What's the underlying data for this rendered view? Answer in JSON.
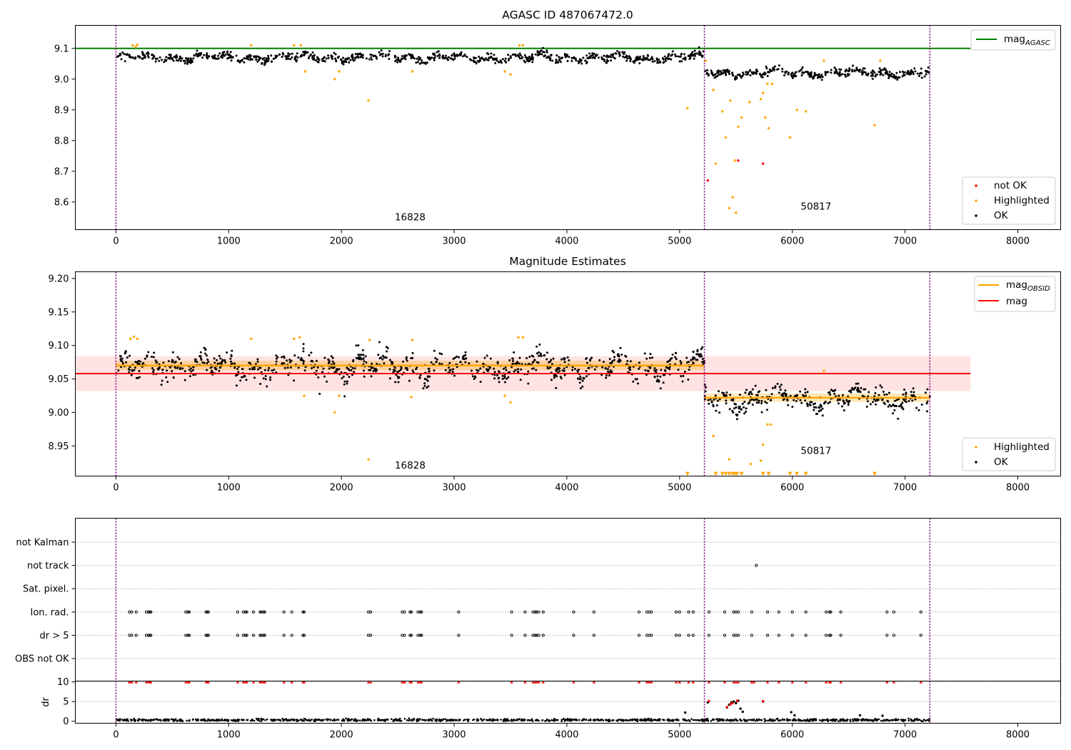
{
  "chart_data": [
    {
      "type": "scatter",
      "title": "AGASC ID 487067472.0",
      "xlim": [
        -360,
        8380
      ],
      "ylim": [
        8.51,
        9.175
      ],
      "x_ticks": [
        0,
        1000,
        2000,
        3000,
        4000,
        5000,
        6000,
        7000,
        8000
      ],
      "y_ticks": [
        8.6,
        8.7,
        8.8,
        8.9,
        9.0,
        9.1
      ],
      "y_tick_labels": [
        "8.6",
        "8.7",
        "8.8",
        "8.9",
        "9.0",
        "9.1"
      ],
      "vlines": [
        0,
        5220,
        7220
      ],
      "obsid_annotations": [
        {
          "text": "16828",
          "x": 2610,
          "y": 8.54
        },
        {
          "text": "50817",
          "x": 6210,
          "y": 8.575
        }
      ],
      "hline": {
        "name": "mag_AGASC",
        "y": 9.1,
        "x_range": [
          -360,
          7580
        ],
        "color": "#008000"
      },
      "series": [
        {
          "name": "OK",
          "color": "#000000",
          "segments": [
            {
              "x_range": [
                0,
                5220
              ],
              "base": 9.07,
              "noise": 0.012
            },
            {
              "x_range": [
                5220,
                7220
              ],
              "base": 9.02,
              "noise": 0.011
            }
          ]
        },
        {
          "name": "Highlighted",
          "color": "#ffa500",
          "points": [
            [
              150,
              9.11
            ],
            [
              175,
              9.105
            ],
            [
              190,
              9.112
            ],
            [
              1200,
              9.11
            ],
            [
              1580,
              9.11
            ],
            [
              1640,
              9.11
            ],
            [
              1680,
              9.025
            ],
            [
              1940,
              9.0
            ],
            [
              1980,
              9.025
            ],
            [
              2240,
              8.93
            ],
            [
              2630,
              9.025
            ],
            [
              3450,
              9.025
            ],
            [
              3500,
              9.015
            ],
            [
              3580,
              9.11
            ],
            [
              3610,
              9.11
            ],
            [
              5070,
              8.905
            ],
            [
              5230,
              9.06
            ],
            [
              5300,
              8.965
            ],
            [
              5320,
              8.725
            ],
            [
              5380,
              8.895
            ],
            [
              5410,
              8.81
            ],
            [
              5440,
              8.58
            ],
            [
              5450,
              8.93
            ],
            [
              5470,
              8.615
            ],
            [
              5490,
              8.735
            ],
            [
              5500,
              8.565
            ],
            [
              5520,
              8.845
            ],
            [
              5550,
              8.875
            ],
            [
              5620,
              8.925
            ],
            [
              5720,
              8.935
            ],
            [
              5740,
              8.955
            ],
            [
              5760,
              8.875
            ],
            [
              5780,
              8.985
            ],
            [
              5790,
              8.84
            ],
            [
              5820,
              8.985
            ],
            [
              5980,
              8.81
            ],
            [
              6040,
              8.9
            ],
            [
              6120,
              8.895
            ],
            [
              6280,
              9.06
            ],
            [
              6730,
              8.85
            ],
            [
              6780,
              9.06
            ]
          ]
        },
        {
          "name": "not OK",
          "color": "#ff0000",
          "points": [
            [
              5250,
              8.67
            ],
            [
              5520,
              8.735
            ],
            [
              5740,
              8.725
            ]
          ]
        }
      ],
      "legend": {
        "placement": "top-right",
        "entries": [
          {
            "label": "mag",
            "sub": "AGASC"
          }
        ]
      },
      "legend2": {
        "placement": "lower-right",
        "entries": [
          "not OK",
          "Highlighted",
          "OK"
        ]
      }
    },
    {
      "type": "scatter",
      "title": "Magnitude Estimates",
      "xlim": [
        -360,
        8380
      ],
      "ylim": [
        8.905,
        9.21
      ],
      "x_ticks": [
        0,
        1000,
        2000,
        3000,
        4000,
        5000,
        6000,
        7000,
        8000
      ],
      "y_ticks": [
        8.95,
        9.0,
        9.05,
        9.1,
        9.15,
        9.2
      ],
      "y_tick_labels": [
        "8.95",
        "9.00",
        "9.05",
        "9.10",
        "9.15",
        "9.20"
      ],
      "vlines": [
        0,
        5220,
        7220
      ],
      "obsid_annotations": [
        {
          "text": "16828",
          "x": 2610,
          "y": 8.916
        },
        {
          "text": "50817",
          "x": 6210,
          "y": 8.938
        }
      ],
      "mag_band": {
        "y_range": [
          9.032,
          9.084
        ],
        "x_range": [
          -360,
          7580
        ],
        "color": "#ffc0c0"
      },
      "mag_line": {
        "y": 9.058,
        "x_range": [
          -360,
          7580
        ],
        "color": "#ff0000"
      },
      "obsid_lines": [
        {
          "x_range": [
            0,
            5220
          ],
          "y": 9.07,
          "band": [
            9.063,
            9.077
          ]
        },
        {
          "x_range": [
            5220,
            7220
          ],
          "y": 9.022,
          "band": [
            9.016,
            9.028
          ]
        }
      ],
      "series": [
        {
          "name": "OK",
          "color": "#000000",
          "segments": [
            {
              "x_range": [
                0,
                5220
              ],
              "base": 9.068,
              "noise": 0.016
            },
            {
              "x_range": [
                5220,
                7220
              ],
              "base": 9.02,
              "noise": 0.014
            }
          ]
        },
        {
          "name": "Highlighted",
          "color": "#ffa500",
          "points": [
            [
              130,
              9.11
            ],
            [
              160,
              9.113
            ],
            [
              190,
              9.11
            ],
            [
              1200,
              9.11
            ],
            [
              1580,
              9.11
            ],
            [
              1630,
              9.112
            ],
            [
              1670,
              9.025
            ],
            [
              1940,
              9.0
            ],
            [
              1980,
              9.025
            ],
            [
              2240,
              8.93
            ],
            [
              2250,
              9.108
            ],
            [
              2620,
              9.023
            ],
            [
              2630,
              9.108
            ],
            [
              3450,
              9.025
            ],
            [
              3500,
              9.015
            ],
            [
              3570,
              9.112
            ],
            [
              3610,
              9.112
            ],
            [
              5300,
              8.965
            ],
            [
              5440,
              8.93
            ],
            [
              5630,
              8.923
            ],
            [
              5720,
              8.928
            ],
            [
              5740,
              8.952
            ],
            [
              5780,
              8.982
            ],
            [
              5810,
              8.982
            ],
            [
              6280,
              9.062
            ]
          ]
        },
        {
          "name": "Highlighted (off-scale)",
          "color": "#ffa500",
          "marker": "triangle-down",
          "y": 8.908,
          "x": [
            5070,
            5320,
            5380,
            5410,
            5440,
            5470,
            5490,
            5510,
            5550,
            5740,
            5790,
            5980,
            6040,
            6120,
            6730
          ]
        }
      ],
      "legend": {
        "placement": "top-right",
        "entries": [
          {
            "label": "mag",
            "sub": "OBSID"
          },
          {
            "label": "mag",
            "sub": ""
          }
        ]
      },
      "legend2": {
        "placement": "lower-right",
        "entries": [
          "Highlighted",
          "OK"
        ]
      }
    },
    {
      "type": "scatter",
      "title": "",
      "xlim": [
        -360,
        8380
      ],
      "vlines": [
        0,
        5220,
        7220
      ],
      "y_categories": [
        "not Kalman",
        "not track",
        "Sat. pixel.",
        "Ion. rad.",
        "dr > 5",
        "OBS not OK"
      ],
      "flag_points": {
        "not Kalman": [],
        "not track": [
          5680
        ],
        "Sat. pixel.": [],
        "Ion. rad.": [
          120,
          140,
          180,
          270,
          290,
          300,
          310,
          620,
          640,
          650,
          800,
          810,
          820,
          1080,
          1130,
          1150,
          1160,
          1220,
          1280,
          1290,
          1310,
          1320,
          1490,
          1560,
          1660,
          1670,
          2240,
          2260,
          2540,
          2560,
          2610,
          2620,
          2680,
          2700,
          2710,
          3040,
          3510,
          3630,
          3700,
          3720,
          3730,
          3750,
          3790,
          4060,
          4240,
          4640,
          4710,
          4730,
          4750,
          4970,
          5000,
          5080,
          5120,
          5260,
          5400,
          5480,
          5500,
          5520,
          5640,
          5780,
          5880,
          6000,
          6120,
          6300,
          6330,
          6340,
          6430,
          6840,
          6900,
          7140
        ],
        "dr > 5": [
          120,
          140,
          180,
          270,
          290,
          300,
          310,
          620,
          640,
          650,
          800,
          810,
          820,
          1080,
          1130,
          1150,
          1160,
          1220,
          1280,
          1290,
          1310,
          1320,
          1490,
          1560,
          1660,
          1670,
          2240,
          2260,
          2540,
          2560,
          2610,
          2620,
          2680,
          2700,
          2710,
          3040,
          3510,
          3630,
          3700,
          3720,
          3730,
          3750,
          3790,
          4060,
          4240,
          4640,
          4710,
          4730,
          4750,
          4970,
          5000,
          5080,
          5120,
          5260,
          5400,
          5480,
          5500,
          5520,
          5640,
          5780,
          5880,
          6000,
          6120,
          6300,
          6330,
          6340,
          6430,
          6840,
          6900,
          7140
        ],
        "OBS not OK": []
      }
    },
    {
      "type": "scatter",
      "title": "",
      "xlim": [
        -360,
        8380
      ],
      "ylim": [
        -0.5,
        10.2
      ],
      "ylabel": "dr",
      "x_ticks": [
        0,
        1000,
        2000,
        3000,
        4000,
        5000,
        6000,
        7000,
        8000
      ],
      "y_ticks": [
        0,
        5,
        10
      ],
      "y_tick_labels": [
        "0",
        "5",
        "10"
      ],
      "vlines": [
        0,
        5220,
        7220
      ],
      "series": [
        {
          "name": "dr",
          "color": "#000000",
          "segments": [
            {
              "x_range": [
                0,
                7220
              ],
              "base": 0.3,
              "noise": 0.25
            }
          ],
          "extra_points": [
            [
              5050,
              2.2
            ],
            [
              5250,
              4.8
            ],
            [
              5420,
              3.5
            ],
            [
              5440,
              4.2
            ],
            [
              5460,
              4.8
            ],
            [
              5480,
              5.0
            ],
            [
              5500,
              4.6
            ],
            [
              5520,
              5.2
            ],
            [
              5540,
              3.2
            ],
            [
              5560,
              2.4
            ],
            [
              5740,
              5.0
            ],
            [
              5990,
              2.3
            ],
            [
              6020,
              1.5
            ],
            [
              6600,
              1.5
            ],
            [
              6800,
              1.4
            ]
          ]
        },
        {
          "name": "dr (clipped at 10)",
          "color": "#ff0000",
          "marker": "triangle-up",
          "y": 10,
          "x": [
            120,
            140,
            180,
            270,
            290,
            300,
            310,
            620,
            640,
            650,
            800,
            810,
            820,
            1080,
            1130,
            1150,
            1160,
            1220,
            1280,
            1290,
            1310,
            1320,
            1490,
            1560,
            1660,
            1670,
            2240,
            2260,
            2540,
            2560,
            2610,
            2620,
            2680,
            2700,
            2710,
            3040,
            3510,
            3630,
            3700,
            3720,
            3730,
            3750,
            3790,
            4060,
            4240,
            4640,
            4710,
            4730,
            4750,
            4970,
            5000,
            5080,
            5120,
            5260,
            5400,
            5480,
            5500,
            5520,
            5640,
            5660,
            5780,
            5880,
            6000,
            6120,
            6300,
            6330,
            6340,
            6430,
            6840,
            6900,
            7140
          ]
        },
        {
          "name": "dr (scattered, red)",
          "color": "#ff0000",
          "points": [
            [
              5260,
              5.1
            ],
            [
              5420,
              3.6
            ],
            [
              5450,
              4.3
            ],
            [
              5470,
              4.6
            ],
            [
              5510,
              5.2
            ],
            [
              5740,
              5.1
            ]
          ]
        }
      ]
    }
  ]
}
